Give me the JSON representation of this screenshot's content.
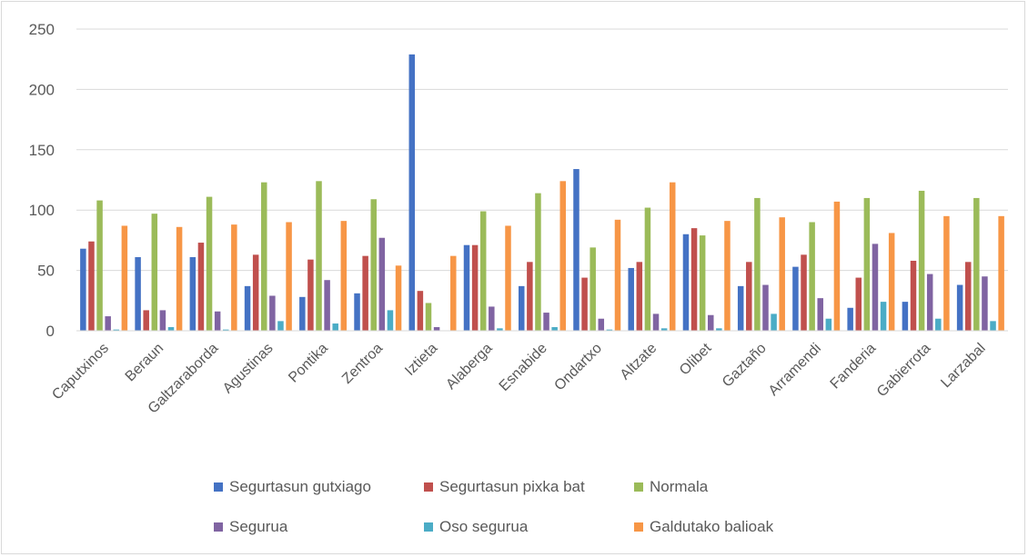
{
  "chart_data": {
    "type": "bar",
    "title": "",
    "xlabel": "",
    "ylabel": "",
    "ylim": [
      0,
      250
    ],
    "yticks": [
      0,
      50,
      100,
      150,
      200,
      250
    ],
    "grid": true,
    "legend_position": "bottom",
    "categories": [
      "Caputxinos",
      "Beraun",
      "Galtzaraborda",
      "Agustinas",
      "Pontika",
      "Zentroa",
      "Iztieta",
      "Alaberga",
      "Esnabide",
      "Ondartxo",
      "Altzate",
      "Olibet",
      "Gaztaño",
      "Arramendi",
      "Fanderia",
      "Gabierrota",
      "Larzabal"
    ],
    "series": [
      {
        "name": "Segurtasun gutxiago",
        "color": "#4472c4",
        "values": [
          68,
          61,
          61,
          37,
          28,
          31,
          229,
          71,
          37,
          134,
          52,
          80,
          37,
          53,
          19,
          24,
          38
        ]
      },
      {
        "name": "Segurtasun pixka bat",
        "color": "#c0504d",
        "values": [
          74,
          17,
          73,
          63,
          59,
          62,
          33,
          71,
          57,
          44,
          57,
          85,
          57,
          63,
          44,
          58,
          57
        ]
      },
      {
        "name": "Normala",
        "color": "#9bbb59",
        "values": [
          108,
          97,
          111,
          123,
          124,
          109,
          23,
          99,
          114,
          69,
          102,
          79,
          110,
          90,
          110,
          116,
          110
        ]
      },
      {
        "name": "Segurua",
        "color": "#8064a2",
        "values": [
          12,
          17,
          16,
          29,
          42,
          77,
          3,
          20,
          15,
          10,
          14,
          13,
          38,
          27,
          72,
          47,
          45
        ]
      },
      {
        "name": "Oso segurua",
        "color": "#4bacc6",
        "values": [
          1,
          3,
          1,
          8,
          6,
          17,
          0,
          2,
          3,
          1,
          2,
          2,
          14,
          10,
          24,
          10,
          8
        ]
      },
      {
        "name": "Galdutako balioak",
        "color": "#f79646",
        "values": [
          87,
          86,
          88,
          90,
          91,
          54,
          62,
          87,
          124,
          92,
          123,
          91,
          94,
          107,
          81,
          95,
          95
        ]
      }
    ]
  }
}
